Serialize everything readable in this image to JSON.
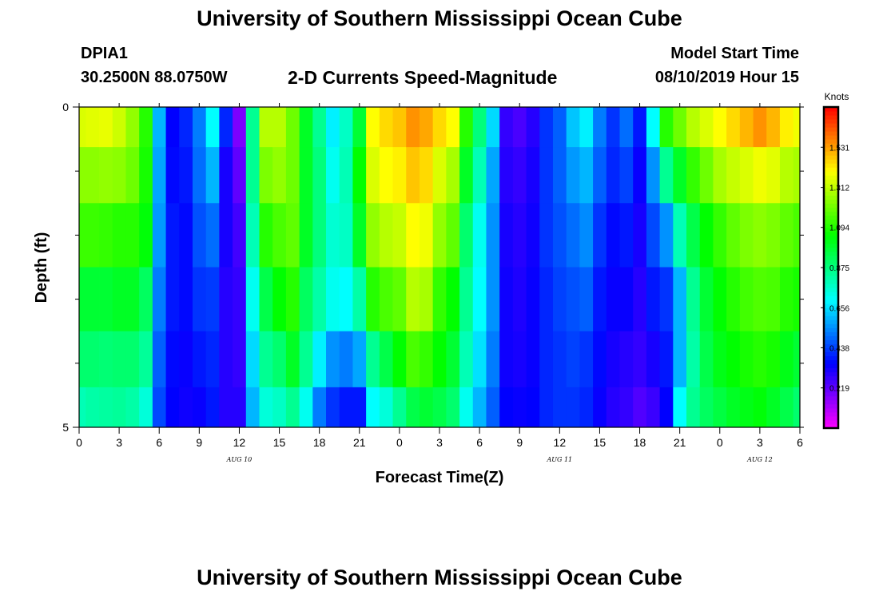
{
  "header": {
    "title": "University of Southern Mississippi Ocean Cube",
    "station_id": "DPIA1",
    "coordinates": "30.2500N 88.0750W",
    "subtitle": "2-D Currents Speed-Magnitude",
    "model_start_label": "Model Start Time",
    "model_start_value": "08/10/2019 Hour 15"
  },
  "footer": {
    "title": "University of Southern Mississippi Ocean Cube"
  },
  "chart_data": {
    "type": "heatmap",
    "title": "2-D Currents Speed-Magnitude",
    "xlabel": "Forecast Time(Z)",
    "ylabel": "Depth (ft)",
    "x_hours_since_aug10_00z": [
      0,
      54
    ],
    "x_tick_positions": [
      0,
      3,
      6,
      9,
      12,
      15,
      18,
      21,
      24,
      27,
      30,
      33,
      36,
      39,
      42,
      45,
      48,
      51,
      54
    ],
    "x_tick_labels": [
      "0",
      "3",
      "6",
      "9",
      "12",
      "15",
      "18",
      "21",
      "0",
      "3",
      "6",
      "9",
      "12",
      "15",
      "18",
      "21",
      "0",
      "3",
      "6"
    ],
    "date_labels": [
      {
        "text": "AUG 10",
        "x": 12
      },
      {
        "text": "AUG 11",
        "x": 36
      },
      {
        "text": "AUG 12",
        "x": 51
      }
    ],
    "ylim": [
      0,
      5
    ],
    "y_ticks": [
      0,
      5
    ],
    "y_tick_labels": [
      "0",
      "5"
    ],
    "colorbar": {
      "label": "Knots",
      "range": [
        0,
        1.75
      ],
      "ticks": [
        0.219,
        0.438,
        0.656,
        0.875,
        1.094,
        1.312,
        1.531
      ],
      "tick_labels": [
        "0.219",
        "0.438",
        "0.656",
        "0.875",
        "1.094",
        "1.312",
        "1.531"
      ]
    },
    "depth_levels_ft": [
      0.25,
      1.0,
      2.0,
      3.0,
      4.0,
      4.75
    ],
    "values_knots_by_hour": [
      [
        1.35,
        1.24,
        1.13,
        0.98,
        0.9,
        0.8
      ],
      [
        1.36,
        1.24,
        1.13,
        0.98,
        0.9,
        0.82
      ],
      [
        1.37,
        1.25,
        1.12,
        0.98,
        0.89,
        0.83
      ],
      [
        1.33,
        1.24,
        1.1,
        1.0,
        0.9,
        0.84
      ],
      [
        1.25,
        1.2,
        1.1,
        1.0,
        0.9,
        0.82
      ],
      [
        1.1,
        1.08,
        1.04,
        0.92,
        0.84,
        0.75
      ],
      [
        0.6,
        0.58,
        0.56,
        0.52,
        0.48,
        0.45
      ],
      [
        0.35,
        0.36,
        0.38,
        0.38,
        0.36,
        0.35
      ],
      [
        0.4,
        0.38,
        0.36,
        0.36,
        0.34,
        0.33
      ],
      [
        0.52,
        0.5,
        0.46,
        0.42,
        0.38,
        0.34
      ],
      [
        0.7,
        0.6,
        0.5,
        0.43,
        0.4,
        0.38
      ],
      [
        0.4,
        0.32,
        0.32,
        0.3,
        0.3,
        0.3
      ],
      [
        0.18,
        0.22,
        0.26,
        0.28,
        0.28,
        0.3
      ],
      [
        0.85,
        0.85,
        0.8,
        0.72,
        0.65,
        0.6
      ],
      [
        1.3,
        1.22,
        1.1,
        0.95,
        0.85,
        0.75
      ],
      [
        1.3,
        1.25,
        1.15,
        1.05,
        0.9,
        0.78
      ],
      [
        1.2,
        1.2,
        1.18,
        1.1,
        1.0,
        0.85
      ],
      [
        1.0,
        1.0,
        1.0,
        0.92,
        0.85,
        0.72
      ],
      [
        0.85,
        0.88,
        0.88,
        0.82,
        0.68,
        0.52
      ],
      [
        0.68,
        0.72,
        0.76,
        0.72,
        0.55,
        0.42
      ],
      [
        0.78,
        0.8,
        0.78,
        0.7,
        0.52,
        0.38
      ],
      [
        0.98,
        1.05,
        1.0,
        0.82,
        0.58,
        0.38
      ],
      [
        1.4,
        1.35,
        1.25,
        1.1,
        0.85,
        0.7
      ],
      [
        1.45,
        1.4,
        1.3,
        1.15,
        0.95,
        0.75
      ],
      [
        1.48,
        1.42,
        1.32,
        1.18,
        1.05,
        0.85
      ],
      [
        1.55,
        1.48,
        1.4,
        1.3,
        1.15,
        0.95
      ],
      [
        1.52,
        1.45,
        1.38,
        1.28,
        1.12,
        0.98
      ],
      [
        1.45,
        1.35,
        1.25,
        1.12,
        1.05,
        0.95
      ],
      [
        1.4,
        1.28,
        1.18,
        1.05,
        0.98,
        0.9
      ],
      [
        1.1,
        1.0,
        0.9,
        0.85,
        0.8,
        0.72
      ],
      [
        0.88,
        0.8,
        0.72,
        0.7,
        0.66,
        0.6
      ],
      [
        0.65,
        0.58,
        0.55,
        0.55,
        0.52,
        0.48
      ],
      [
        0.28,
        0.3,
        0.32,
        0.33,
        0.33,
        0.35
      ],
      [
        0.25,
        0.28,
        0.3,
        0.31,
        0.32,
        0.34
      ],
      [
        0.3,
        0.32,
        0.33,
        0.34,
        0.34,
        0.35
      ],
      [
        0.42,
        0.42,
        0.42,
        0.4,
        0.4,
        0.4
      ],
      [
        0.48,
        0.48,
        0.46,
        0.44,
        0.42,
        0.42
      ],
      [
        0.62,
        0.56,
        0.5,
        0.46,
        0.44,
        0.42
      ],
      [
        0.68,
        0.6,
        0.54,
        0.48,
        0.42,
        0.4
      ],
      [
        0.52,
        0.48,
        0.42,
        0.38,
        0.36,
        0.34
      ],
      [
        0.42,
        0.4,
        0.36,
        0.34,
        0.32,
        0.3
      ],
      [
        0.5,
        0.44,
        0.38,
        0.34,
        0.3,
        0.28
      ],
      [
        0.38,
        0.34,
        0.32,
        0.3,
        0.28,
        0.24
      ],
      [
        0.7,
        0.55,
        0.45,
        0.38,
        0.32,
        0.27
      ],
      [
        1.1,
        0.85,
        0.55,
        0.42,
        0.38,
        0.35
      ],
      [
        1.2,
        1.0,
        0.8,
        0.6,
        0.6,
        0.7
      ],
      [
        1.3,
        1.12,
        0.95,
        0.85,
        0.82,
        0.85
      ],
      [
        1.35,
        1.2,
        1.05,
        0.98,
        0.95,
        0.92
      ],
      [
        1.4,
        1.28,
        1.12,
        1.05,
        1.02,
        0.96
      ],
      [
        1.45,
        1.32,
        1.18,
        1.1,
        1.05,
        1.0
      ],
      [
        1.5,
        1.35,
        1.22,
        1.14,
        1.08,
        1.02
      ],
      [
        1.55,
        1.38,
        1.24,
        1.16,
        1.1,
        1.04
      ],
      [
        1.5,
        1.36,
        1.22,
        1.15,
        1.08,
        1.0
      ],
      [
        1.42,
        1.3,
        1.18,
        1.1,
        1.02,
        0.95
      ],
      [
        1.38,
        1.28,
        1.15,
        1.08,
        0.98,
        0.9
      ]
    ]
  }
}
